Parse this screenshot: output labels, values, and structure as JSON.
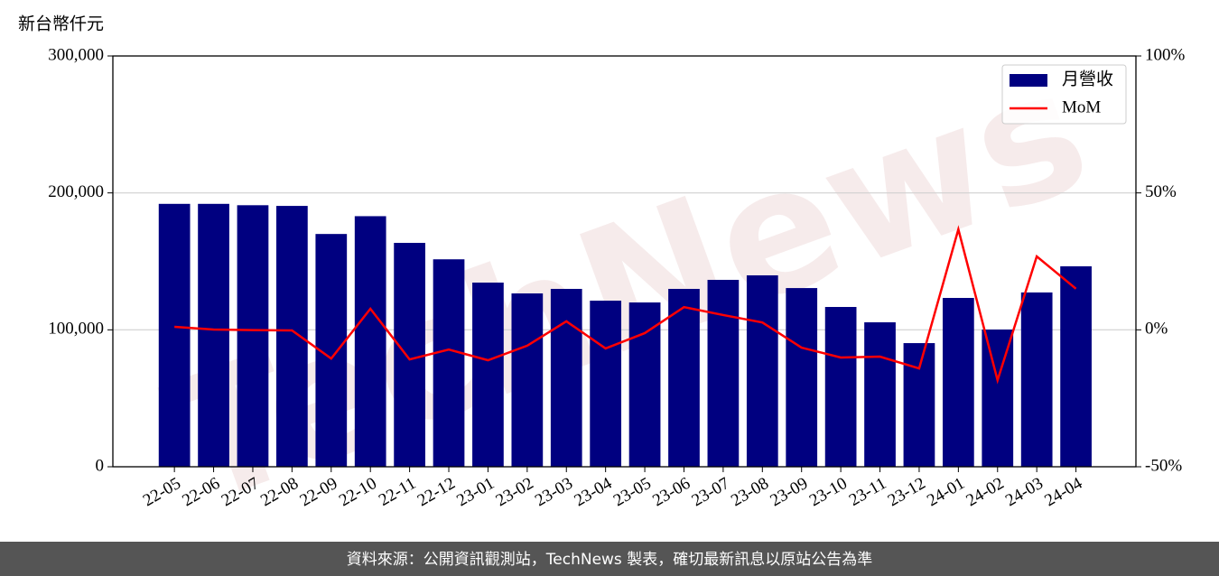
{
  "chart_data": {
    "type": "bar",
    "y_axis_label": "新台幣仟元",
    "watermark": "TechNews",
    "source_note": "資料來源：公開資訊觀測站，TechNews 製表，確切最新訊息以原站公告為準",
    "categories": [
      "22-05",
      "22-06",
      "22-07",
      "22-08",
      "22-09",
      "22-10",
      "22-11",
      "22-12",
      "23-01",
      "23-02",
      "23-03",
      "23-04",
      "23-05",
      "23-06",
      "23-07",
      "23-08",
      "23-09",
      "23-10",
      "23-11",
      "23-12",
      "24-01",
      "24-02",
      "24-03",
      "24-04"
    ],
    "series": [
      {
        "name": "月營收",
        "type": "bar",
        "color": "#000080",
        "values": [
          192000,
          192000,
          191000,
          190500,
          170000,
          183000,
          163500,
          151500,
          134500,
          126600,
          129900,
          121300,
          120000,
          129900,
          136500,
          139800,
          130500,
          116700,
          105500,
          90300,
          123300,
          100200,
          127300,
          146400
        ]
      },
      {
        "name": "MoM",
        "type": "line",
        "axis": "y2",
        "color": "#ff0000",
        "values": [
          1.1,
          0.1,
          -0.1,
          -0.2,
          -10.5,
          7.7,
          -10.8,
          -7.2,
          -11.1,
          -5.8,
          3.1,
          -6.8,
          -1.2,
          8.3,
          5.4,
          2.7,
          -6.5,
          -10.1,
          -9.8,
          -14.1,
          36.7,
          -18.4,
          26.8,
          15.0
        ]
      }
    ],
    "ylim": [
      0,
      300000
    ],
    "yticks": [
      0,
      {
        "value": 100000,
        "label": "100,000"
      },
      {
        "value": 200000,
        "label": "200,000"
      },
      {
        "value": 300000,
        "label": "300,000"
      }
    ],
    "y2lim": [
      -50,
      100
    ],
    "y2ticks": [
      {
        "value": -50,
        "label": "-50%"
      },
      {
        "value": 0,
        "label": "0%"
      },
      {
        "value": 50,
        "label": "50%"
      },
      {
        "value": 100,
        "label": "100%"
      }
    ],
    "grid": true,
    "legend": "upper right"
  }
}
